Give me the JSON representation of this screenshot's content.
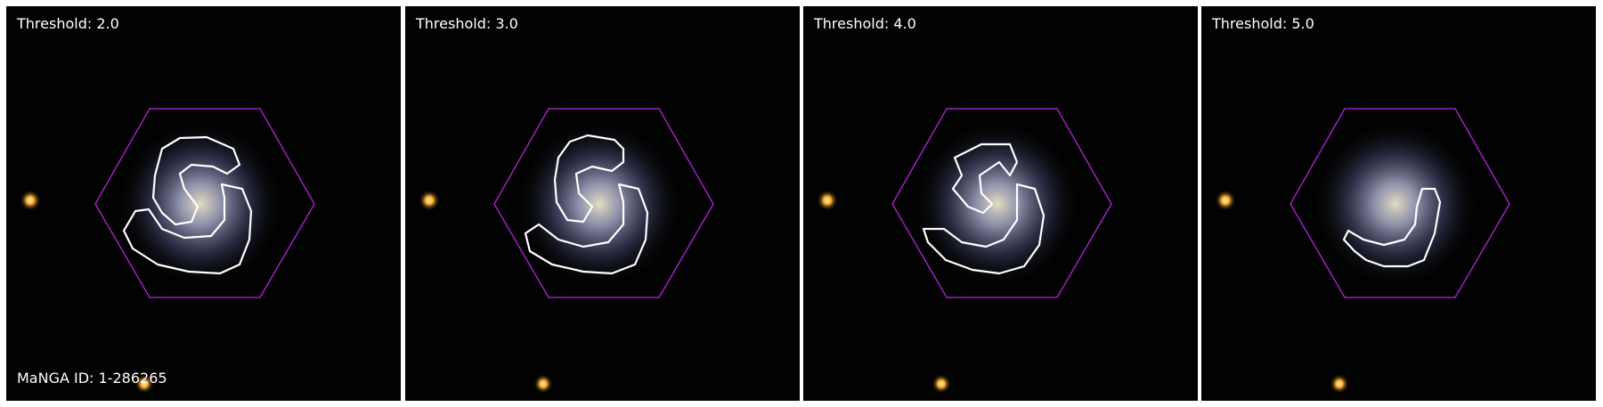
{
  "galaxy_id_label": "MaNGA ID: 1-286265",
  "panels": [
    {
      "label": "Threshold: 2.0",
      "threshold": 2.0
    },
    {
      "label": "Threshold: 3.0",
      "threshold": 3.0
    },
    {
      "label": "Threshold: 4.0",
      "threshold": 4.0
    },
    {
      "label": "Threshold: 5.0",
      "threshold": 5.0
    }
  ],
  "colors": {
    "background": "#020202",
    "hexagon": "#a020c0",
    "contour": "#ffffff",
    "galaxy_core": "#d8d2b8",
    "galaxy_arms": "#8a95c8",
    "star": "#ffb030"
  }
}
